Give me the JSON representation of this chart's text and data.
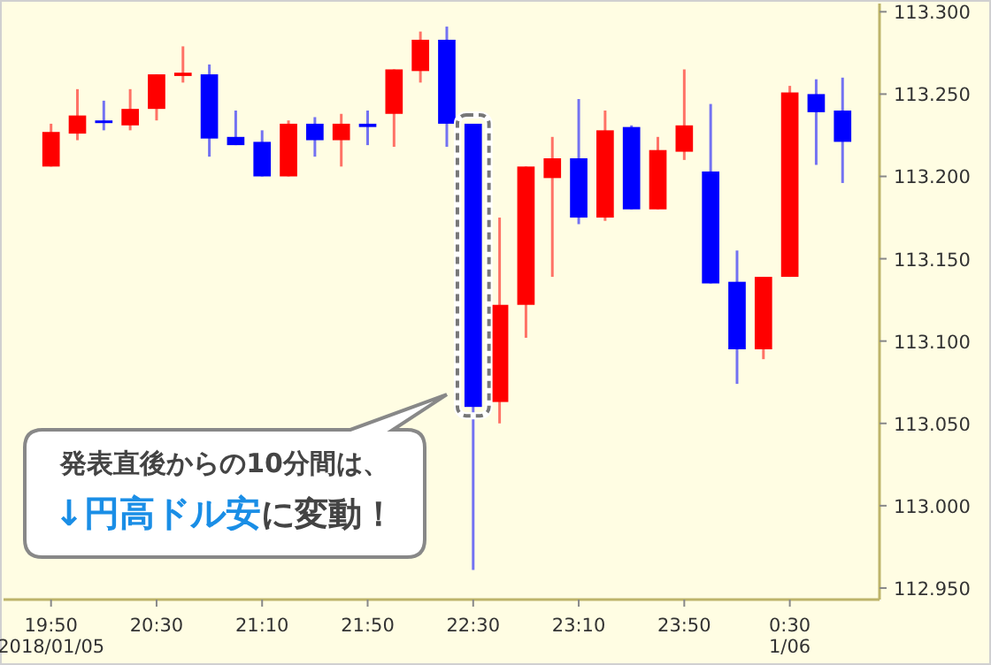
{
  "chart_data": {
    "type": "candlestick",
    "x": [
      "2018-01-05T19:50",
      "2018-01-05T20:00",
      "2018-01-05T20:10",
      "2018-01-05T20:20",
      "2018-01-05T20:30",
      "2018-01-05T20:40",
      "2018-01-05T20:50",
      "2018-01-05T21:00",
      "2018-01-05T21:10",
      "2018-01-05T21:20",
      "2018-01-05T21:30",
      "2018-01-05T21:40",
      "2018-01-05T21:50",
      "2018-01-05T22:00",
      "2018-01-05T22:10",
      "2018-01-05T22:20",
      "2018-01-05T22:30",
      "2018-01-05T22:40",
      "2018-01-05T22:50",
      "2018-01-05T23:00",
      "2018-01-05T23:10",
      "2018-01-05T23:20",
      "2018-01-05T23:30",
      "2018-01-05T23:40",
      "2018-01-05T23:50",
      "2018-01-06T00:00",
      "2018-01-06T00:10",
      "2018-01-06T00:20",
      "2018-01-06T00:30",
      "2018-01-06T00:40",
      "2018-01-06T00:50"
    ],
    "ohlc": [
      [
        113.206,
        113.232,
        113.206,
        113.227
      ],
      [
        113.226,
        113.253,
        113.222,
        113.237
      ],
      [
        113.234,
        113.246,
        113.228,
        113.233
      ],
      [
        113.231,
        113.253,
        113.228,
        113.241
      ],
      [
        113.241,
        113.262,
        113.234,
        113.262
      ],
      [
        113.261,
        113.279,
        113.257,
        113.263
      ],
      [
        113.262,
        113.268,
        113.212,
        113.223
      ],
      [
        113.224,
        113.24,
        113.219,
        113.219
      ],
      [
        113.221,
        113.228,
        113.2,
        113.2
      ],
      [
        113.2,
        113.234,
        113.2,
        113.232
      ],
      [
        113.232,
        113.236,
        113.212,
        113.222
      ],
      [
        113.222,
        113.238,
        113.206,
        113.232
      ],
      [
        113.232,
        113.24,
        113.219,
        113.23
      ],
      [
        113.238,
        113.265,
        113.218,
        113.265
      ],
      [
        113.264,
        113.288,
        113.257,
        113.283
      ],
      [
        113.283,
        113.291,
        113.218,
        113.232
      ],
      [
        113.232,
        113.232,
        112.961,
        113.06
      ],
      [
        113.063,
        113.175,
        113.05,
        113.122
      ],
      [
        113.122,
        113.206,
        113.102,
        113.206
      ],
      [
        113.199,
        113.224,
        113.139,
        113.211
      ],
      [
        113.211,
        113.247,
        113.171,
        113.175
      ],
      [
        113.175,
        113.24,
        113.173,
        113.228
      ],
      [
        113.23,
        113.231,
        113.18,
        113.18
      ],
      [
        113.18,
        113.224,
        113.18,
        113.216
      ],
      [
        113.215,
        113.265,
        113.21,
        113.231
      ],
      [
        113.203,
        113.244,
        113.135,
        113.135
      ],
      [
        113.136,
        113.155,
        113.074,
        113.095
      ],
      [
        113.095,
        113.139,
        113.089,
        113.139
      ],
      [
        113.139,
        113.255,
        113.139,
        113.251
      ],
      [
        113.25,
        113.259,
        113.207,
        113.239
      ],
      [
        113.24,
        113.26,
        113.196,
        113.221
      ]
    ],
    "colors": [
      "#ff0000",
      "#ff0000",
      "#0000ff",
      "#ff0000",
      "#ff0000",
      "#ff0000",
      "#0000ff",
      "#0000ff",
      "#0000ff",
      "#ff0000",
      "#0000ff",
      "#ff0000",
      "#0000ff",
      "#ff0000",
      "#ff0000",
      "#0000ff",
      "#0000ff",
      "#ff0000",
      "#ff0000",
      "#ff0000",
      "#0000ff",
      "#ff0000",
      "#0000ff",
      "#ff0000",
      "#ff0000",
      "#0000ff",
      "#0000ff",
      "#ff0000",
      "#ff0000",
      "#0000ff",
      "#0000ff"
    ],
    "xlim": [
      "2018-01-05T19:32",
      "2018-01-06T01:04"
    ],
    "xticks": [
      {
        "value": "2018-01-05T19:50",
        "label": "19:50\n2018/01/05"
      },
      {
        "value": "2018-01-05T20:30",
        "label": "20:30"
      },
      {
        "value": "2018-01-05T21:10",
        "label": "21:10"
      },
      {
        "value": "2018-01-05T21:50",
        "label": "21:50"
      },
      {
        "value": "2018-01-05T22:30",
        "label": "22:30"
      },
      {
        "value": "2018-01-05T23:10",
        "label": "23:10"
      },
      {
        "value": "2018-01-05T23:50",
        "label": "23:50"
      },
      {
        "value": "2018-01-06T00:30",
        "label": "0:30\n1/06"
      }
    ],
    "ylim": [
      112.943,
      113.305
    ],
    "yticks": [
      {
        "value": 112.95,
        "label": "112.950"
      },
      {
        "value": 113.0,
        "label": "113.000"
      },
      {
        "value": 113.05,
        "label": "113.050"
      },
      {
        "value": 113.1,
        "label": "113.100"
      },
      {
        "value": 113.15,
        "label": "113.150"
      },
      {
        "value": 113.2,
        "label": "113.200"
      },
      {
        "value": 113.25,
        "label": "113.250"
      },
      {
        "value": 113.3,
        "label": "113.300"
      }
    ],
    "grid": false,
    "annotations": [
      "発表直後からの10分間は、",
      "↓円高ドル安",
      "に変動！"
    ]
  }
}
